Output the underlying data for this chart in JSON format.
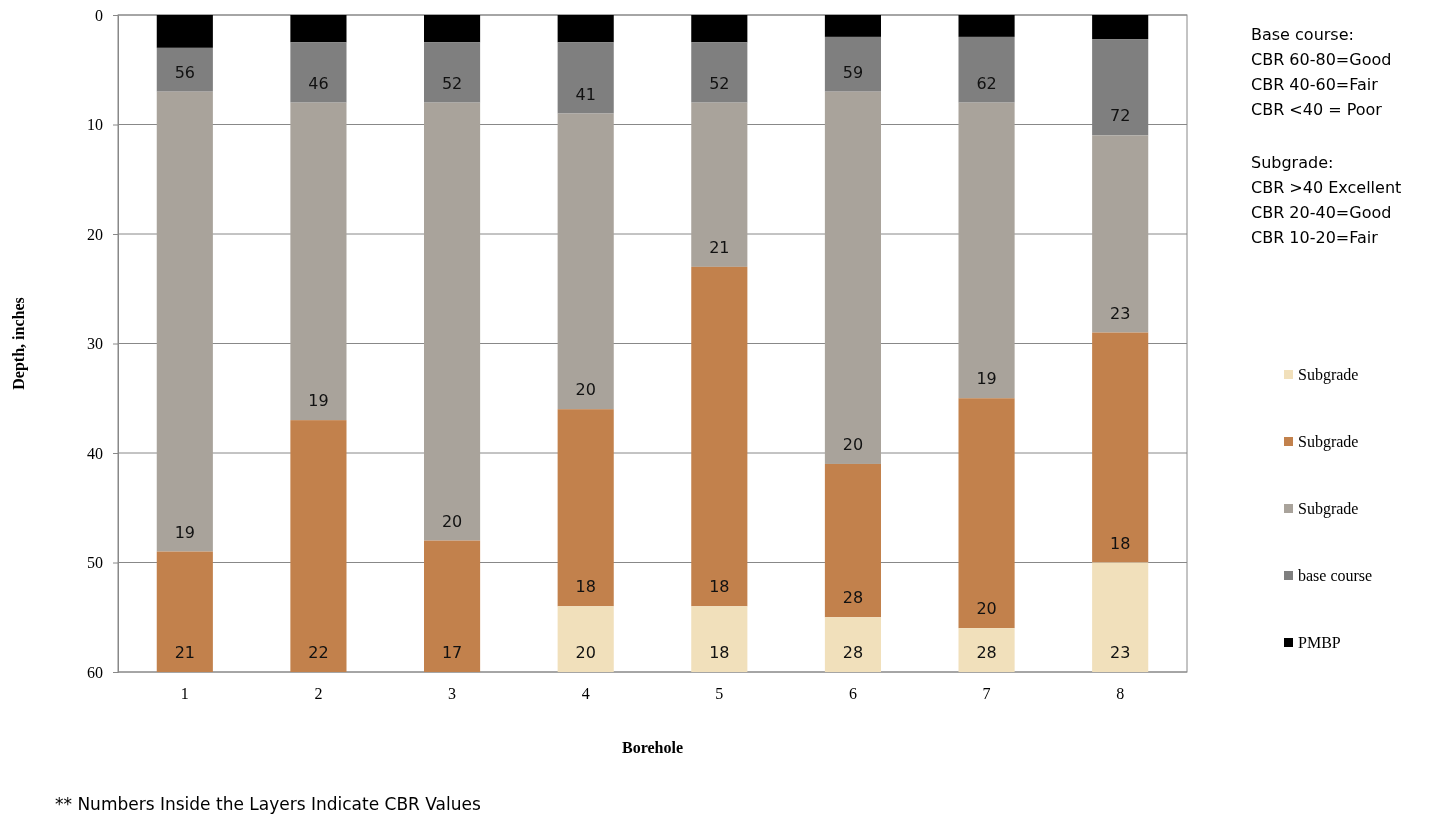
{
  "chart_data": {
    "type": "bar",
    "stacked": true,
    "xlabel": "Borehole",
    "ylabel": "Depth, inches",
    "categories": [
      "1",
      "2",
      "3",
      "4",
      "5",
      "6",
      "7",
      "8"
    ],
    "ylim": [
      60,
      0
    ],
    "yticks": [
      0,
      10,
      20,
      30,
      40,
      50,
      60
    ],
    "grid": "y",
    "legend": "right",
    "series": [
      {
        "name": "PMBP",
        "color": "#000000",
        "values": [
          3,
          2.5,
          2.5,
          2.5,
          2.5,
          2,
          2,
          2.2
        ]
      },
      {
        "name": "base course",
        "color": "#7f7f7f",
        "values": [
          4,
          5.5,
          5.5,
          6.5,
          5.5,
          5,
          6,
          8.8
        ]
      },
      {
        "name": "Subgrade",
        "color": "#a9a39b",
        "values": [
          42,
          29,
          40,
          27,
          15,
          34,
          27,
          18
        ]
      },
      {
        "name": "Subgrade",
        "color": "#c2814c",
        "values": [
          11,
          23,
          12,
          18,
          31,
          14,
          21,
          21
        ]
      },
      {
        "name": "Subgrade",
        "color": "#f1e0bb",
        "values": [
          0,
          0,
          0,
          6,
          6,
          5,
          4,
          10
        ]
      }
    ],
    "annotations": [
      "Base course:\nCBR 60-80=Good\nCBR 40-60=Fair\nCBR <40 = Poor",
      "Subgrade:\nCBR >40 Excellent\nCBR 20-40=Good\nCBR 10-20=Fair",
      {
        "text": "56",
        "x": "1",
        "y": 7
      },
      {
        "text": "19",
        "x": "1",
        "y": 49
      },
      {
        "text": "21",
        "x": "1",
        "y": 60
      },
      {
        "text": "46",
        "x": "2",
        "y": 8
      },
      {
        "text": "19",
        "x": "2",
        "y": 37
      },
      {
        "text": "22",
        "x": "2",
        "y": 60
      },
      {
        "text": "52",
        "x": "3",
        "y": 8
      },
      {
        "text": "20",
        "x": "3",
        "y": 48
      },
      {
        "text": "17",
        "x": "3",
        "y": 60
      },
      {
        "text": "41",
        "x": "4",
        "y": 9
      },
      {
        "text": "20",
        "x": "4",
        "y": 36
      },
      {
        "text": "18",
        "x": "4",
        "y": 54
      },
      {
        "text": "20",
        "x": "4",
        "y": 60
      },
      {
        "text": "52",
        "x": "5",
        "y": 8
      },
      {
        "text": "21",
        "x": "5",
        "y": 23
      },
      {
        "text": "18",
        "x": "5",
        "y": 54
      },
      {
        "text": "18",
        "x": "5",
        "y": 60
      },
      {
        "text": "59",
        "x": "6",
        "y": 7
      },
      {
        "text": "20",
        "x": "6",
        "y": 41
      },
      {
        "text": "28",
        "x": "6",
        "y": 55
      },
      {
        "text": "28",
        "x": "6",
        "y": 60
      },
      {
        "text": "62",
        "x": "7",
        "y": 8
      },
      {
        "text": "19",
        "x": "7",
        "y": 35
      },
      {
        "text": "20",
        "x": "7",
        "y": 56
      },
      {
        "text": "28",
        "x": "7",
        "y": 60
      },
      {
        "text": "72",
        "x": "8",
        "y": 11
      },
      {
        "text": "23",
        "x": "8",
        "y": 29
      },
      {
        "text": "18",
        "x": "8",
        "y": 50
      },
      {
        "text": "23",
        "x": "8",
        "y": 60
      },
      "** Numbers Inside the Layers Indicate CBR Values"
    ]
  }
}
